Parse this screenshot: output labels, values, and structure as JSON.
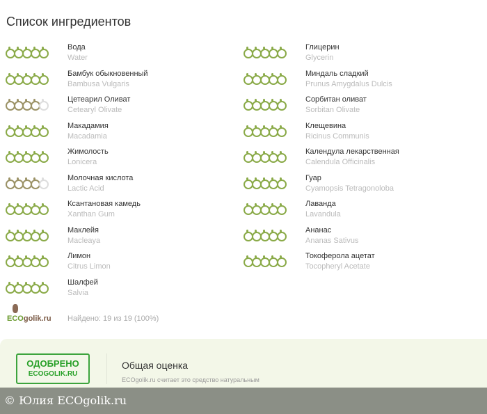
{
  "title": "Список ингредиентов",
  "colors": {
    "green": "#8aaa48",
    "olive": "#9b9266",
    "empty": "#dddddd"
  },
  "left": [
    {
      "ru": "Вода",
      "latin": "Water",
      "rating": 5,
      "tone": "green"
    },
    {
      "ru": "Бамбук обыкновенный",
      "latin": "Bambusa Vulgaris",
      "rating": 5,
      "tone": "green"
    },
    {
      "ru": "Цетеарил Оливат",
      "latin": "Cetearyl Olivate",
      "rating": 4,
      "tone": "olive"
    },
    {
      "ru": "Макадамия",
      "latin": "Macadamia",
      "rating": 5,
      "tone": "green"
    },
    {
      "ru": "Жимолость",
      "latin": "Lonicera",
      "rating": 5,
      "tone": "green"
    },
    {
      "ru": "Молочная кислота",
      "latin": "Lactic Acid",
      "rating": 4,
      "tone": "olive"
    },
    {
      "ru": "Ксантановая камедь",
      "latin": "Xanthan Gum",
      "rating": 5,
      "tone": "green"
    },
    {
      "ru": "Маклейя",
      "latin": "Macleaya",
      "rating": 5,
      "tone": "green"
    },
    {
      "ru": "Лимон",
      "latin": "Citrus Limon",
      "rating": 5,
      "tone": "green"
    },
    {
      "ru": "Шалфей",
      "latin": "Salvia",
      "rating": 5,
      "tone": "green"
    }
  ],
  "right": [
    {
      "ru": "Глицерин",
      "latin": "Glycerin",
      "rating": 5,
      "tone": "green"
    },
    {
      "ru": "Миндаль сладкий",
      "latin": "Prunus Amygdalus Dulcis",
      "rating": 5,
      "tone": "green"
    },
    {
      "ru": "Сорбитан оливат",
      "latin": "Sorbitan Olivate",
      "rating": 5,
      "tone": "green"
    },
    {
      "ru": "Клещевина",
      "latin": "Ricinus Communis",
      "rating": 5,
      "tone": "green"
    },
    {
      "ru": "Календула лекарственная",
      "latin": "Calendula Officinalis",
      "rating": 5,
      "tone": "green"
    },
    {
      "ru": "Гуар",
      "latin": "Cyamopsis Tetragonoloba",
      "rating": 5,
      "tone": "green"
    },
    {
      "ru": "Лаванда",
      "latin": "Lavandula",
      "rating": 5,
      "tone": "green"
    },
    {
      "ru": "Ананас",
      "latin": "Ananas Sativus",
      "rating": 5,
      "tone": "green"
    },
    {
      "ru": "Токоферола ацетат",
      "latin": "Tocopheryl Acetate",
      "rating": 5,
      "tone": "green"
    }
  ],
  "logo": {
    "eco": "ECO",
    "golik": "golik.ru"
  },
  "found": "Найдено: 19 из 19 (100%)",
  "stamp": {
    "line1": "ОДОБРЕНО",
    "line2": "ECOGOLIK.RU"
  },
  "overall": {
    "title": "Общая оценка",
    "desc": "ECOgolik.ru считает это средство натуральным"
  },
  "watermark": "© Юлия ECOgolik.ru"
}
